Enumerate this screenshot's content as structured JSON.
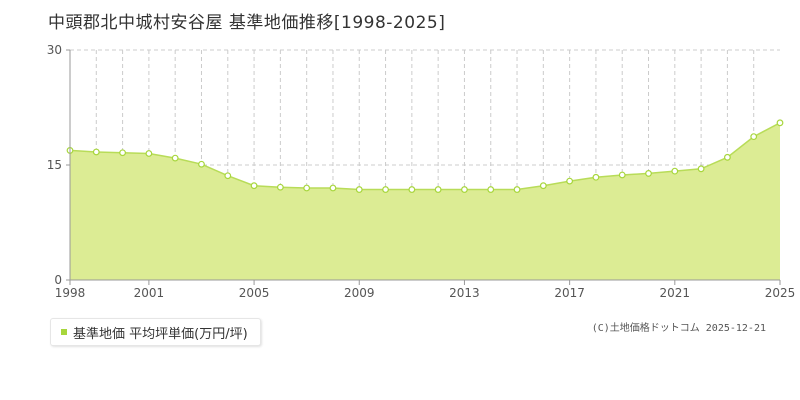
{
  "title": "中頭郡北中城村安谷屋 基準地価推移[1998-2025]",
  "legend_label": "基準地価 平均坪単価(万円/坪)",
  "copyright": "(C)土地価格ドットコム 2025-12-21",
  "colors": {
    "fill": "#dcec94",
    "line": "#b8dc58",
    "marker_stroke": "#a7d63c",
    "grid": "#cccccc",
    "axis": "#999999"
  },
  "chart_data": {
    "type": "area",
    "title": "中頭郡北中城村安谷屋 基準地価推移[1998-2025]",
    "xlabel": "",
    "ylabel": "",
    "xlim": [
      1998,
      2025
    ],
    "ylim": [
      0,
      30
    ],
    "y_ticks": [
      "0",
      "15",
      "30"
    ],
    "x_ticks": [
      "1998",
      "2001",
      "2005",
      "2009",
      "2013",
      "2017",
      "2021",
      "2025"
    ],
    "grid": true,
    "legend_position": "bottom-left",
    "series": [
      {
        "name": "基準地価 平均坪単価(万円/坪)",
        "x": [
          1998,
          1999,
          2000,
          2001,
          2002,
          2003,
          2004,
          2005,
          2006,
          2007,
          2008,
          2009,
          2010,
          2011,
          2012,
          2013,
          2014,
          2015,
          2016,
          2017,
          2018,
          2019,
          2020,
          2021,
          2022,
          2023,
          2024,
          2025
        ],
        "values": [
          16.9,
          16.7,
          16.6,
          16.5,
          15.9,
          15.1,
          13.6,
          12.3,
          12.1,
          12.0,
          12.0,
          11.8,
          11.8,
          11.8,
          11.8,
          11.8,
          11.8,
          11.8,
          12.3,
          12.9,
          13.4,
          13.7,
          13.9,
          14.2,
          14.5,
          16.0,
          18.7,
          20.5
        ]
      }
    ]
  }
}
